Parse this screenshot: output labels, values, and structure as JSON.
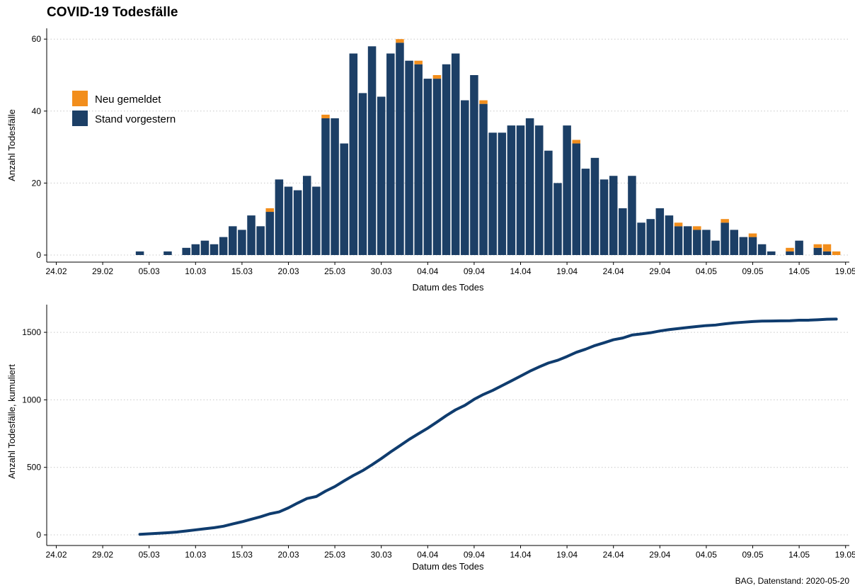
{
  "page": {
    "title": "COVID-19 Todesfälle",
    "footer": "BAG, Datenstand: 2020-05-20"
  },
  "colors": {
    "stand_vorgestern": "#1c3f66",
    "neu_gemeldet": "#f28e1c",
    "cumulative_line": "#0f3c6e",
    "grid": "#c8c8c8"
  },
  "chart_data": [
    {
      "type": "bar",
      "stacked": true,
      "xlabel": "Datum des Todes",
      "ylabel": "Anzahl Todesfälle",
      "ylim": [
        0,
        60
      ],
      "yticks": [
        0,
        20,
        40,
        60
      ],
      "x_start": "24.02",
      "x_tick_labels": [
        "24.02",
        "29.02",
        "05.03",
        "10.03",
        "15.03",
        "20.03",
        "25.03",
        "30.03",
        "04.04",
        "09.04",
        "14.04",
        "19.04",
        "24.04",
        "29.04",
        "04.05",
        "09.05",
        "14.05",
        "19.05"
      ],
      "legend": {
        "position": "top-left",
        "entries": [
          "Neu gemeldet",
          "Stand vorgestern"
        ]
      },
      "grid": "horizontal-dotted",
      "series": [
        {
          "name": "Stand vorgestern",
          "values": [
            0,
            0,
            0,
            0,
            0,
            0,
            0,
            0,
            0,
            1,
            0,
            0,
            1,
            0,
            2,
            3,
            4,
            3,
            5,
            8,
            7,
            11,
            8,
            12,
            21,
            19,
            18,
            22,
            19,
            38,
            38,
            31,
            56,
            45,
            58,
            44,
            56,
            59,
            54,
            53,
            49,
            49,
            53,
            56,
            43,
            50,
            42,
            34,
            34,
            36,
            36,
            38,
            36,
            29,
            20,
            36,
            31,
            24,
            27,
            21,
            22,
            13,
            22,
            9,
            10,
            13,
            11,
            8,
            8,
            7,
            7,
            4,
            9,
            7,
            5,
            5,
            3,
            1,
            0,
            1,
            4,
            0,
            2,
            1,
            0
          ]
        },
        {
          "name": "Neu gemeldet",
          "values": [
            0,
            0,
            0,
            0,
            0,
            0,
            0,
            0,
            0,
            0,
            0,
            0,
            0,
            0,
            0,
            0,
            0,
            0,
            0,
            0,
            0,
            0,
            0,
            1,
            0,
            0,
            0,
            0,
            0,
            1,
            0,
            0,
            0,
            0,
            0,
            0,
            0,
            1,
            0,
            1,
            0,
            1,
            0,
            0,
            0,
            0,
            1,
            0,
            0,
            0,
            0,
            0,
            0,
            0,
            0,
            0,
            1,
            0,
            0,
            0,
            0,
            0,
            0,
            0,
            0,
            0,
            0,
            1,
            0,
            1,
            0,
            0,
            1,
            0,
            0,
            1,
            0,
            0,
            0,
            1,
            0,
            0,
            1,
            2,
            1
          ]
        }
      ]
    },
    {
      "type": "line",
      "xlabel": "Datum des Todes",
      "ylabel": "Anzahl Todesfälle, kumuliert",
      "ylim": [
        0,
        1650
      ],
      "yticks": [
        0,
        500,
        1000,
        1500
      ],
      "x_tick_labels": [
        "24.02",
        "29.02",
        "05.03",
        "10.03",
        "15.03",
        "20.03",
        "25.03",
        "30.03",
        "04.04",
        "09.04",
        "14.04",
        "19.04",
        "24.04",
        "29.04",
        "04.05",
        "09.05",
        "14.05",
        "19.05"
      ],
      "grid": "horizontal-dotted",
      "series": [
        {
          "name": "",
          "values": [
            1,
            1,
            1,
            1,
            2,
            2,
            2,
            2,
            2,
            4,
            8,
            12,
            16,
            21,
            29,
            37,
            45,
            53,
            64,
            81,
            97,
            116,
            134,
            156,
            170,
            200,
            236,
            269,
            284,
            324,
            358,
            400,
            440,
            476,
            519,
            565,
            614,
            660,
            707,
            749,
            790,
            836,
            883,
            926,
            959,
            1004,
            1040,
            1070,
            1105,
            1140,
            1176,
            1212,
            1244,
            1273,
            1293,
            1321,
            1352,
            1375,
            1402,
            1423,
            1445,
            1458,
            1480,
            1488,
            1497,
            1510,
            1520,
            1528,
            1536,
            1543,
            1550,
            1554,
            1563,
            1570,
            1575,
            1580,
            1583,
            1584,
            1585,
            1586,
            1590,
            1590,
            1593,
            1597,
            1598
          ]
        }
      ]
    }
  ]
}
